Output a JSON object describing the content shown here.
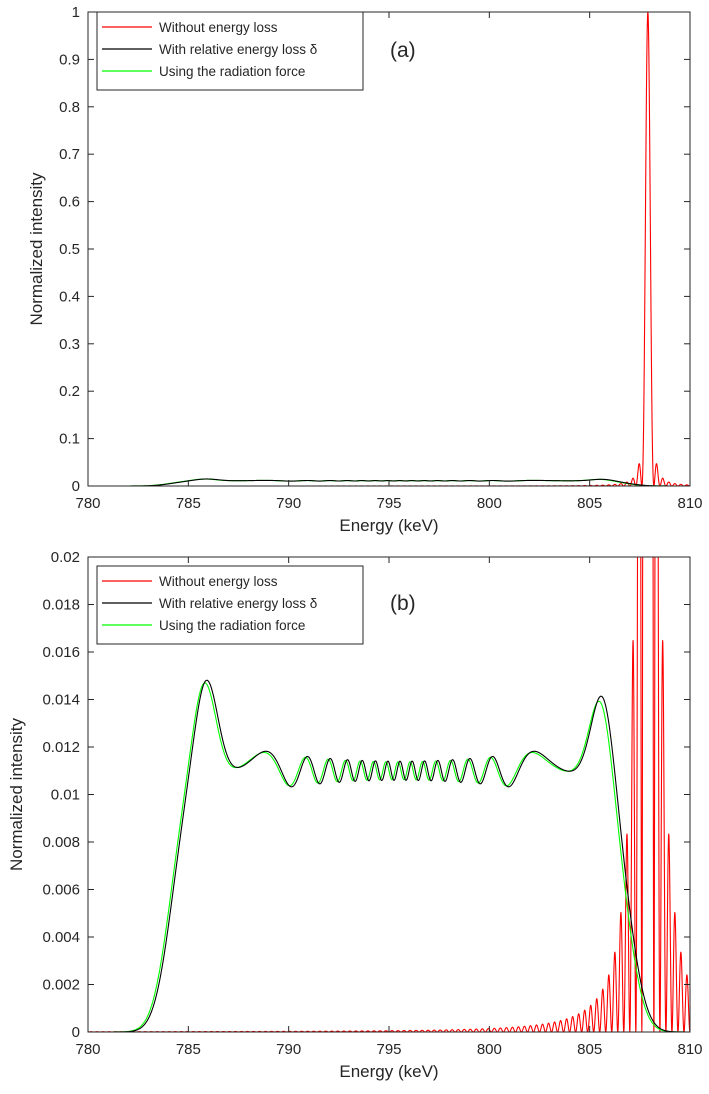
{
  "chart_data": [
    {
      "type": "line",
      "panel_label": "(a)",
      "xlabel": "Energy (keV)",
      "ylabel": "Normalized intensity",
      "xlim": [
        780,
        810
      ],
      "ylim": [
        0,
        1
      ],
      "xticks": [
        780,
        785,
        790,
        795,
        800,
        805,
        810
      ],
      "yticks": [
        0,
        0.1,
        0.2,
        0.3,
        0.4,
        0.5,
        0.6,
        0.7,
        0.8,
        0.9,
        1
      ],
      "ytick_labels": [
        "0",
        "0.1",
        "0.2",
        "0.3",
        "0.4",
        "0.5",
        "0.6",
        "0.7",
        "0.8",
        "0.9",
        "1"
      ],
      "legend_position": "top-left",
      "grid": false,
      "series": [
        {
          "name": "Without energy loss",
          "color": "#ff0000",
          "model": "sinc2",
          "peak_x": 807.9,
          "peak_y": 1.0,
          "first_zero_offset": 0.3
        },
        {
          "name": "With relative energy loss δ",
          "color": "#000000",
          "model": "broadened",
          "band_x": [
            784.3,
            806.8
          ],
          "edge_peaks_y": [
            0.0157,
            0.0154
          ],
          "plateau_y": 0.011,
          "oscillation_amplitude": 0.0016
        },
        {
          "name": "Using the radiation force",
          "color": "#00ff00",
          "model": "broadened",
          "band_x": [
            784.2,
            806.7
          ],
          "edge_peaks_y": [
            0.0156,
            0.0152
          ],
          "plateau_y": 0.011,
          "oscillation_amplitude": 0.0015
        }
      ]
    },
    {
      "type": "line",
      "panel_label": "(b)",
      "xlabel": "Energy (keV)",
      "ylabel": "Normalized intensity",
      "xlim": [
        780,
        810
      ],
      "ylim": [
        0,
        0.02
      ],
      "xticks": [
        780,
        785,
        790,
        795,
        800,
        805,
        810
      ],
      "yticks": [
        0,
        0.002,
        0.004,
        0.006,
        0.008,
        0.01,
        0.012,
        0.014,
        0.016,
        0.018,
        0.02
      ],
      "ytick_labels": [
        "0",
        "0.002",
        "0.004",
        "0.006",
        "0.008",
        "0.01",
        "0.012",
        "0.014",
        "0.016",
        "0.018",
        "0.02"
      ],
      "legend_position": "top-left",
      "grid": false,
      "series": [
        {
          "name": "Without energy loss",
          "color": "#ff0000",
          "model": "sinc2",
          "peak_x": 807.9,
          "peak_y": 1.0,
          "first_zero_offset": 0.3
        },
        {
          "name": "With relative energy loss δ",
          "color": "#000000",
          "model": "broadened",
          "band_x": [
            784.3,
            806.8
          ],
          "edge_peaks_y": [
            0.0157,
            0.0154
          ],
          "plateau_y": 0.011,
          "oscillation_amplitude": 0.0016
        },
        {
          "name": "Using the radiation force",
          "color": "#00ff00",
          "model": "broadened",
          "band_x": [
            784.2,
            806.7
          ],
          "edge_peaks_y": [
            0.0156,
            0.0152
          ],
          "plateau_y": 0.011,
          "oscillation_amplitude": 0.0015
        }
      ]
    }
  ]
}
